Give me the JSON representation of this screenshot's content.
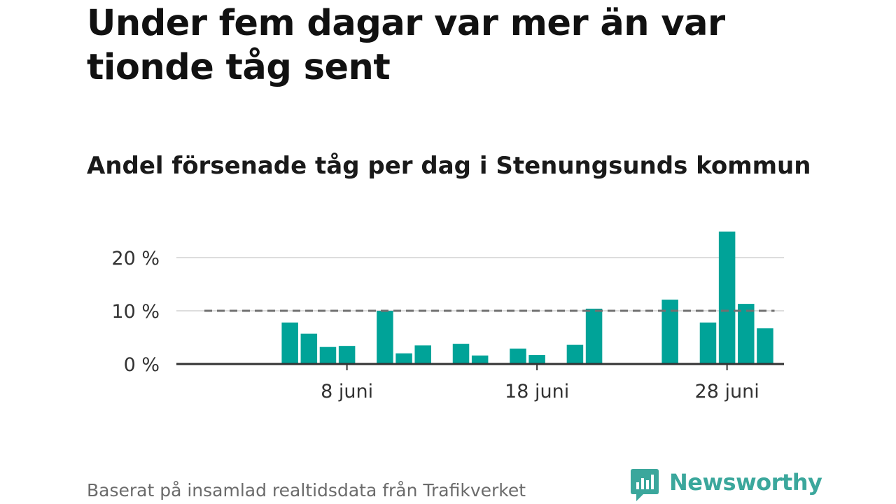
{
  "title": "Under fem dagar var mer än var tionde tåg sent",
  "subtitle": "Andel försenade tåg per dag i Stenungsunds kommun",
  "footer": "Baserat på insamlad realtidsdata från Trafikverket",
  "brand": {
    "name": "Newsworthy",
    "icon": "newsworthy-logo-icon",
    "color": "#3ba79c"
  },
  "chart_data": {
    "type": "bar",
    "x_unit": "day of June",
    "x_range": [
      1,
      30
    ],
    "x": [
      5,
      6,
      7,
      8,
      10,
      11,
      12,
      14,
      15,
      17,
      18,
      20,
      21,
      25,
      27,
      28,
      29,
      30
    ],
    "values": [
      7.8,
      5.7,
      3.2,
      3.4,
      10.0,
      2.0,
      3.5,
      3.8,
      1.6,
      2.9,
      1.7,
      3.6,
      10.4,
      12.1,
      7.8,
      24.9,
      11.3,
      6.7
    ],
    "y_unit": "%",
    "ylim": [
      0,
      26
    ],
    "y_ticks": [
      0,
      10,
      20
    ],
    "y_tick_labels": [
      "0 %",
      "10 %",
      "20 %"
    ],
    "x_ticks": [
      8,
      18,
      28
    ],
    "x_tick_labels": [
      "8 juni",
      "18 juni",
      "28 juni"
    ],
    "reference_line": {
      "value": 10,
      "style": "dashed",
      "color": "#707070",
      "x_range": [
        0.5,
        30.5
      ]
    },
    "bar_color": "#00a398",
    "grid": true,
    "xlabel": "",
    "ylabel": ""
  }
}
